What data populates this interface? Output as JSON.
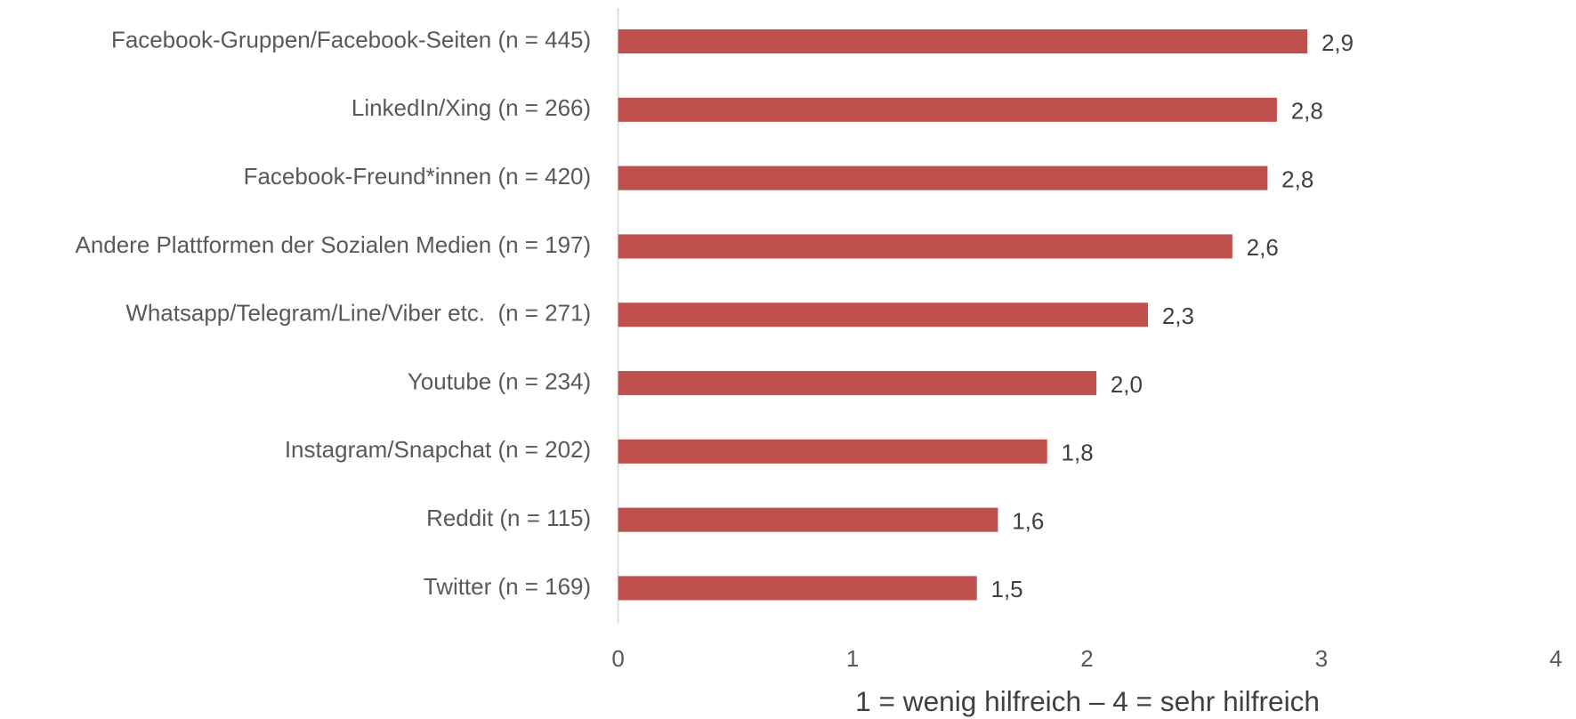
{
  "chart_data": {
    "type": "barh",
    "categories": [
      "Facebook-Gruppen/Facebook-Seiten (n = 445)",
      "LinkedIn/Xing (n = 266)",
      "Facebook-Freund*innen (n = 420)",
      "Andere Plattformen der Sozialen Medien (n = 197)",
      "Whatsapp/Telegram/Line/Viber etc.  (n = 271)",
      "Youtube (n = 234)",
      "Instagram/Snapchat (n = 202)",
      "Reddit (n = 115)",
      "Twitter (n = 169)"
    ],
    "values": [
      2.94,
      2.81,
      2.77,
      2.62,
      2.26,
      2.04,
      1.83,
      1.62,
      1.53
    ],
    "value_labels": [
      "2,9",
      "2,8",
      "2,8",
      "2,6",
      "2,3",
      "2,0",
      "1,8",
      "1,6",
      "1,5"
    ],
    "color": "#c0504d",
    "xlim": [
      0,
      4
    ],
    "xticks": [
      0,
      1,
      2,
      3,
      4
    ],
    "xlabel": "1 = wenig hilfreich – 4 = sehr hilfreich",
    "grid": false
  }
}
